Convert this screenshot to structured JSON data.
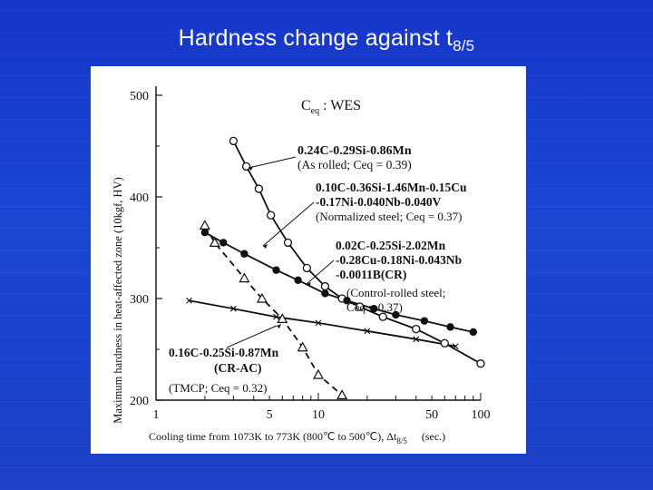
{
  "slide": {
    "title_main": "Hardness change against t",
    "title_sub": "8/5"
  },
  "chart_data": {
    "type": "line",
    "x_scale": "log",
    "xlim": [
      1,
      100
    ],
    "ylim": [
      200,
      500
    ],
    "xticks": [
      "1",
      "5",
      "10",
      "50",
      "100"
    ],
    "yticks": [
      "200",
      "300",
      "400",
      "500"
    ],
    "xlabel": "Cooling time from 1073K to 773K (800℃ to 500℃),  Δt",
    "xlabel_sub": "8/5",
    "xlabel_unit": "(sec.)",
    "ylabel": "Maximum hardness in heat-affected zone (10kgf, HV)",
    "ceq_label": "C",
    "ceq_label_sub": "eq",
    "ceq_label_rest": " : WES",
    "series": [
      {
        "marker": "open-circle",
        "dash": "solid",
        "points": [
          [
            3.0,
            455
          ],
          [
            3.6,
            430
          ],
          [
            4.3,
            408
          ],
          [
            5.1,
            382
          ],
          [
            6.5,
            355
          ],
          [
            8.5,
            330
          ],
          [
            11,
            312
          ],
          [
            14,
            300
          ],
          [
            18,
            292
          ],
          [
            25,
            282
          ],
          [
            40,
            270
          ],
          [
            60,
            256
          ],
          [
            100,
            236
          ]
        ],
        "label_lines": [
          "0.24C-0.29Si-0.86Mn",
          "(As rolled; Ceq = 0.39)"
        ]
      },
      {
        "marker": "filled-circle",
        "dash": "solid",
        "points": [
          [
            2.0,
            365
          ],
          [
            2.6,
            355
          ],
          [
            3.5,
            344
          ],
          [
            5.5,
            328
          ],
          [
            7.5,
            318
          ],
          [
            11,
            305
          ],
          [
            15,
            298
          ],
          [
            22,
            290
          ],
          [
            30,
            284
          ],
          [
            45,
            278
          ],
          [
            65,
            272
          ],
          [
            90,
            267
          ]
        ],
        "label_lines": [
          "0.10C-0.36Si-1.46Mn-0.15Cu",
          "-0.17Ni-0.040Nb-0.040V",
          "(Normalized steel; Ceq = 0.37)"
        ]
      },
      {
        "marker": "cross",
        "dash": "solid",
        "points": [
          [
            1.6,
            298
          ],
          [
            3.0,
            290
          ],
          [
            5.5,
            282
          ],
          [
            10,
            276
          ],
          [
            20,
            268
          ],
          [
            40,
            260
          ],
          [
            70,
            253
          ]
        ],
        "label_lines": [
          "0.02C-0.25Si-2.02Mn",
          "-0.28Cu-0.18Ni-0.043Nb",
          "-0.0011B(CR)",
          "(Control-rolled steel;",
          "Ceq = 0.37)"
        ]
      },
      {
        "marker": "open-triangle",
        "dash": "dashed",
        "points": [
          [
            2.0,
            372
          ],
          [
            2.3,
            355
          ],
          [
            3.5,
            320
          ],
          [
            4.5,
            300
          ],
          [
            6.0,
            280
          ],
          [
            8.0,
            252
          ],
          [
            10,
            225
          ],
          [
            14,
            205
          ]
        ],
        "label_lines": [
          "0.16C-0.25Si-0.87Mn",
          "(CR-AC)",
          "(TMCP; Ceq = 0.32)"
        ]
      }
    ]
  }
}
